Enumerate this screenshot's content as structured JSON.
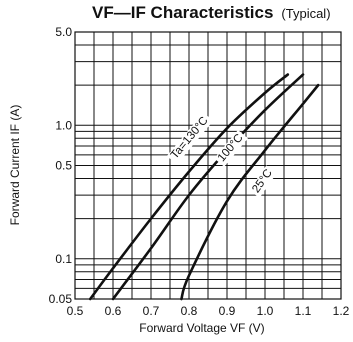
{
  "chart_data": {
    "type": "line",
    "title": "VF—IF Characteristics",
    "subtitle": "(Typical)",
    "xlabel": "Forward Voltage VF (V)",
    "ylabel": "Forward Current IF (A)",
    "xlim": [
      0.5,
      1.2
    ],
    "ylim": [
      0.05,
      5.0
    ],
    "yscale": "log",
    "grid": true,
    "x_ticks": [
      0.5,
      0.6,
      0.7,
      0.8,
      0.9,
      1.0,
      1.1,
      1.2
    ],
    "x_tick_labels": [
      "0.5",
      "0.6",
      "0.7",
      "0.8",
      "0.9",
      "1.0",
      "1.1",
      "1.2"
    ],
    "y_tick_labels": [
      {
        "value": 5.0,
        "label": "5.0"
      },
      {
        "value": 1.0,
        "label": "1.0"
      },
      {
        "value": 0.5,
        "label": "0.5"
      },
      {
        "value": 0.1,
        "label": "0.1"
      },
      {
        "value": 0.05,
        "label": "0.05"
      }
    ],
    "y_gridlines": [
      0.05,
      0.06,
      0.07,
      0.08,
      0.09,
      0.1,
      0.2,
      0.3,
      0.4,
      0.5,
      0.6,
      0.7,
      0.8,
      0.9,
      1.0,
      2.0,
      3.0,
      4.0,
      5.0
    ],
    "series": [
      {
        "name": "Ta=130°C",
        "x": [
          0.54,
          0.6,
          0.7,
          0.8,
          0.9,
          1.0,
          1.06
        ],
        "y": [
          0.05,
          0.085,
          0.2,
          0.45,
          0.95,
          1.75,
          2.4
        ]
      },
      {
        "name": "100°C",
        "x": [
          0.6,
          0.7,
          0.8,
          0.9,
          1.0,
          1.1
        ],
        "y": [
          0.05,
          0.12,
          0.3,
          0.65,
          1.3,
          2.4
        ]
      },
      {
        "name": "25°C",
        "x": [
          0.78,
          0.8,
          0.9,
          1.0,
          1.1,
          1.14
        ],
        "y": [
          0.05,
          0.075,
          0.27,
          0.65,
          1.45,
          2.0
        ]
      }
    ]
  }
}
